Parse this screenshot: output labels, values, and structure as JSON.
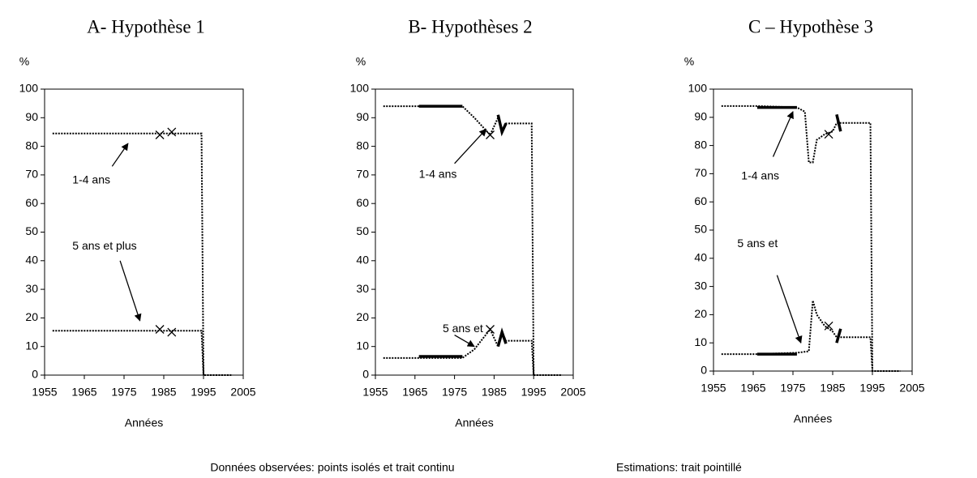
{
  "chart_data": [
    {
      "type": "line",
      "title": "A- Hypothèse 1",
      "ylabel": "%",
      "xlabel": "Années",
      "xlim": [
        1955,
        2005
      ],
      "xticks": [
        1955,
        1965,
        1975,
        1985,
        1995,
        2005
      ],
      "ylim": [
        0,
        100
      ],
      "yticks": [
        0,
        10,
        20,
        30,
        40,
        50,
        60,
        70,
        80,
        90,
        100
      ],
      "annotations": [
        "1-4 ans",
        "5 ans et plus"
      ],
      "series": [
        {
          "style": "dotted",
          "x": [
            1957,
            1994.5,
            1995,
            2002
          ],
          "values": [
            84.5,
            84.5,
            0,
            0
          ]
        },
        {
          "style": "dotted",
          "x": [
            1957,
            1994.5,
            1995
          ],
          "values": [
            15.5,
            15.5,
            0
          ]
        },
        {
          "style": "marker",
          "x": [
            1984,
            1987
          ],
          "values": [
            84,
            85
          ]
        },
        {
          "style": "marker",
          "x": [
            1984,
            1987
          ],
          "values": [
            16,
            15
          ]
        }
      ]
    },
    {
      "type": "line",
      "title": "B- Hypothèses 2",
      "ylabel": "%",
      "xlabel": "Années",
      "xlim": [
        1955,
        2005
      ],
      "xticks": [
        1955,
        1965,
        1975,
        1985,
        1995,
        2005
      ],
      "ylim": [
        0,
        100
      ],
      "yticks": [
        0,
        10,
        20,
        30,
        40,
        50,
        60,
        70,
        80,
        90,
        100
      ],
      "annotations": [
        "1-4 ans",
        "5 ans et"
      ],
      "series": [
        {
          "style": "dotted",
          "x": [
            1957,
            1977,
            1980,
            1984,
            1986,
            1987,
            1988,
            1994.5,
            1995,
            2002
          ],
          "values": [
            94,
            94,
            90,
            84,
            90,
            85,
            88,
            88,
            0,
            0
          ]
        },
        {
          "style": "dotted",
          "x": [
            1957,
            1977,
            1980,
            1984,
            1986,
            1987,
            1988,
            1994.5,
            1995
          ],
          "values": [
            6,
            6,
            9,
            16,
            10,
            15,
            12,
            12,
            0
          ]
        },
        {
          "style": "solid",
          "x": [
            1966,
            1977
          ],
          "values": [
            94,
            94
          ]
        },
        {
          "style": "solid",
          "x": [
            1986,
            1987,
            1988
          ],
          "values": [
            91,
            85,
            88
          ]
        },
        {
          "style": "solid",
          "x": [
            1966,
            1977
          ],
          "values": [
            6.5,
            6.5
          ]
        },
        {
          "style": "solid",
          "x": [
            1986,
            1987,
            1988
          ],
          "values": [
            10,
            15,
            11
          ]
        },
        {
          "style": "marker",
          "x": [
            1984
          ],
          "values": [
            84
          ]
        },
        {
          "style": "marker",
          "x": [
            1984
          ],
          "values": [
            16
          ]
        }
      ]
    },
    {
      "type": "line",
      "title": "C – Hypothèse 3",
      "ylabel": "%",
      "xlabel": "Années",
      "xlim": [
        1955,
        2005
      ],
      "xticks": [
        1955,
        1965,
        1975,
        1985,
        1995,
        2005
      ],
      "ylim": [
        0,
        100
      ],
      "yticks": [
        0,
        10,
        20,
        30,
        40,
        50,
        60,
        70,
        80,
        90,
        100
      ],
      "annotations": [
        "1-4 ans",
        "5 ans et"
      ],
      "series": [
        {
          "style": "dotted",
          "x": [
            1957,
            1966,
            1976,
            1978,
            1979,
            1980,
            1981,
            1983,
            1985,
            1986,
            1988,
            1994.5,
            1995,
            2002
          ],
          "values": [
            94,
            94,
            93.5,
            92,
            74,
            74,
            82,
            84,
            85,
            88,
            88,
            88,
            0,
            0
          ]
        },
        {
          "style": "dotted",
          "x": [
            1957,
            1966,
            1976,
            1979,
            1980,
            1981,
            1983,
            1985,
            1986,
            1988,
            1994.5,
            1995
          ],
          "values": [
            6,
            6,
            6.5,
            7,
            25,
            20,
            16,
            14,
            12,
            12,
            12,
            0
          ]
        },
        {
          "style": "solid",
          "x": [
            1966,
            1976
          ],
          "values": [
            93.5,
            93.5
          ]
        },
        {
          "style": "solid",
          "x": [
            1986,
            1987
          ],
          "values": [
            91,
            85
          ]
        },
        {
          "style": "solid",
          "x": [
            1966,
            1976
          ],
          "values": [
            6,
            6
          ]
        },
        {
          "style": "solid",
          "x": [
            1986,
            1987
          ],
          "values": [
            10,
            15
          ]
        },
        {
          "style": "marker",
          "x": [
            1984
          ],
          "values": [
            84
          ]
        },
        {
          "style": "marker",
          "x": [
            1984
          ],
          "values": [
            16
          ]
        }
      ]
    }
  ],
  "notes": [
    "Données observées: points isolés et trait continu",
    "Estimations: trait pointillé"
  ]
}
